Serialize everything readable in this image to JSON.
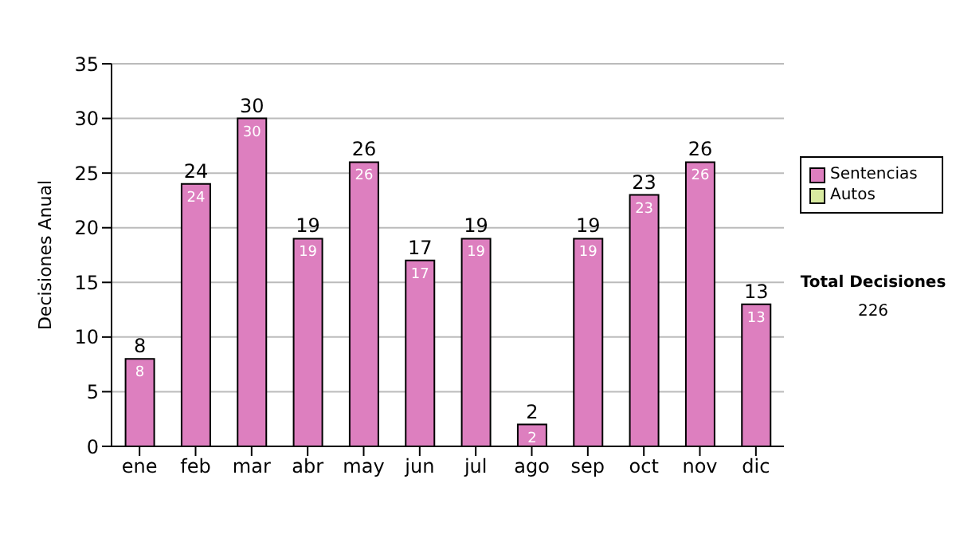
{
  "chart_data": {
    "type": "bar",
    "ylabel": "Decisiones Anual",
    "categories": [
      "ene",
      "feb",
      "mar",
      "abr",
      "may",
      "jun",
      "jul",
      "ago",
      "sep",
      "oct",
      "nov",
      "dic"
    ],
    "series": [
      {
        "name": "Sentencias",
        "color": "#dd7fbf",
        "values": [
          8,
          24,
          30,
          19,
          26,
          17,
          19,
          2,
          19,
          23,
          26,
          13
        ],
        "value_labels": [
          "8",
          "24",
          "30",
          "19",
          "26",
          "17",
          "19",
          "2",
          "19",
          "23",
          "26",
          "13"
        ]
      },
      {
        "name": "Autos",
        "color": "#d8eaa0",
        "values": [
          0,
          0,
          0,
          0,
          0,
          0,
          0,
          0,
          0,
          0,
          0,
          0
        ]
      }
    ],
    "stacked": true,
    "totals": [
      "8",
      "24",
      "30",
      "19",
      "26",
      "17",
      "19",
      "2",
      "19",
      "23",
      "26",
      "13"
    ],
    "ylim": [
      0,
      35
    ],
    "yticks": [
      0,
      5,
      10,
      15,
      20,
      25,
      30,
      35
    ],
    "grid": "y",
    "legend": "right",
    "annotations": [
      "Total Decisiones",
      "226"
    ]
  }
}
